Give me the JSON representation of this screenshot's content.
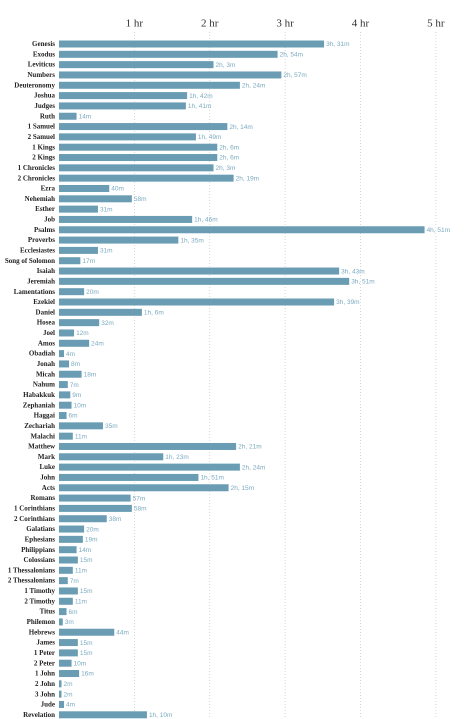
{
  "chart_data": {
    "type": "barh",
    "color": "#6a9db4",
    "label_color": "#7aaac0",
    "grid": true,
    "categories": [
      "Genesis",
      "Exodus",
      "Leviticus",
      "Numbers",
      "Deuteronomy",
      "Joshua",
      "Judges",
      "Ruth",
      "1 Samuel",
      "2 Samuel",
      "1 Kings",
      "2 Kings",
      "1 Chronicles",
      "2 Chronicles",
      "Ezra",
      "Nehemiah",
      "Esther",
      "Job",
      "Psalms",
      "Proverbs",
      "Ecclesiastes",
      "Song of Solomon",
      "Isaiah",
      "Jeremiah",
      "Lamentations",
      "Ezekiel",
      "Daniel",
      "Hosea",
      "Joel",
      "Amos",
      "Obadiah",
      "Jonah",
      "Micah",
      "Nahum",
      "Habakkuk",
      "Zephaniah",
      "Haggai",
      "Zechariah",
      "Malachi",
      "Matthew",
      "Mark",
      "Luke",
      "John",
      "Acts",
      "Romans",
      "1 Corinthians",
      "2 Corinthians",
      "Galatians",
      "Ephesians",
      "Philippians",
      "Colossians",
      "1 Thessalonians",
      "2 Thessalonians",
      "1 Timothy",
      "2 Timothy",
      "Titus",
      "Philemon",
      "Hebrews",
      "James",
      "1 Peter",
      "2 Peter",
      "1 John",
      "2 John",
      "3 John",
      "Jude",
      "Revelation"
    ],
    "values": [
      211,
      174,
      123,
      177,
      144,
      102,
      101,
      14,
      134,
      109,
      126,
      126,
      123,
      139,
      40,
      58,
      31,
      106,
      291,
      95,
      31,
      17,
      223,
      231,
      20,
      219,
      66,
      32,
      12,
      24,
      4,
      8,
      18,
      7,
      9,
      10,
      6,
      35,
      11,
      141,
      83,
      144,
      111,
      135,
      57,
      58,
      38,
      20,
      19,
      14,
      15,
      11,
      7,
      15,
      11,
      6,
      3,
      44,
      15,
      15,
      10,
      16,
      2,
      2,
      4,
      70
    ],
    "value_labels": [
      "3h, 31m",
      "2h, 54m",
      "2h, 3m",
      "2h, 57m",
      "2h, 24m",
      "1h, 42m",
      "1h, 41m",
      "14m",
      "2h, 14m",
      "1h, 49m",
      "2h, 6m",
      "2h, 6m",
      "2h, 3m",
      "2h, 19m",
      "40m",
      "58m",
      "31m",
      "1h, 46m",
      "4h, 51m",
      "1h, 35m",
      "31m",
      "17m",
      "3h, 43m",
      "3h, 51m",
      "20m",
      "3h, 39m",
      "1h, 6m",
      "32m",
      "12m",
      "24m",
      "4m",
      "8m",
      "18m",
      "7m",
      "9m",
      "10m",
      "6m",
      "35m",
      "11m",
      "2h, 21m",
      "1h, 23m",
      "2h, 24m",
      "1h, 51m",
      "2h, 15m",
      "57m",
      "58m",
      "38m",
      "20m",
      "19m",
      "14m",
      "15m",
      "11m",
      "7m",
      "15m",
      "11m",
      "6m",
      "3m",
      "44m",
      "15m",
      "15m",
      "10m",
      "16m",
      "2m",
      "2m",
      "4m",
      "1h, 10m"
    ],
    "xlim": [
      0,
      320
    ],
    "xticks": [
      {
        "value": 60,
        "label": "1 hr"
      },
      {
        "value": 120,
        "label": "2 hr"
      },
      {
        "value": 180,
        "label": "3 hr"
      },
      {
        "value": 240,
        "label": "4 hr"
      },
      {
        "value": 300,
        "label": "5 hr"
      }
    ]
  }
}
